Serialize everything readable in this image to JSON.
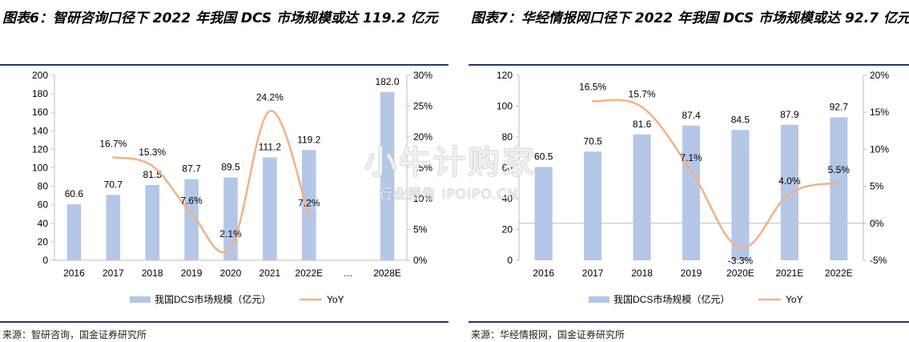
{
  "left": {
    "title": "图表6：智研咨询口径下 2022 年我国 DCS 市场规模或达 119.2 亿元",
    "source": "来源：智研咨询，国金证券研究所"
  },
  "right": {
    "title": "图表7：华经情报网口径下 2022 年我国 DCS 市场规模或达 92.7 亿元",
    "source": "来源：华经情报网，国金证券研究所"
  },
  "watermark": {
    "main": "小牛计购家",
    "sub": "行业报告 IPOIPO.CN"
  },
  "colors": {
    "bar": "#b4c7e7",
    "line": "#f4b183",
    "rule": "#1f3a68",
    "axis": "#bfbfbf"
  },
  "chart_data": [
    {
      "type": "bar",
      "categories": [
        "2016",
        "2017",
        "2018",
        "2019",
        "2020",
        "2021",
        "2022E",
        "…",
        "2028E"
      ],
      "series": [
        {
          "name": "我国DCS市场规模（亿元）",
          "type": "bar",
          "axis": "left",
          "values": [
            60.6,
            70.7,
            81.5,
            87.7,
            89.5,
            111.2,
            119.2,
            null,
            182.0
          ],
          "labels": [
            "60.6",
            "70.7",
            "81.5",
            "87.7",
            "89.5",
            "111.2",
            "119.2",
            "",
            "182.0"
          ]
        },
        {
          "name": "YoY",
          "type": "line",
          "axis": "right",
          "values": [
            null,
            16.7,
            15.3,
            7.6,
            2.1,
            24.2,
            7.2,
            null,
            null
          ],
          "labels": [
            "",
            "16.7%",
            "15.3%",
            "7.6%",
            "2.1%",
            "24.2%",
            "7.2%",
            "",
            ""
          ]
        }
      ],
      "ylim": [
        0,
        200
      ],
      "yticks": [
        "0",
        "20",
        "40",
        "60",
        "80",
        "100",
        "120",
        "140",
        "160",
        "180",
        "200"
      ],
      "y2lim": [
        0,
        30
      ],
      "y2ticks": [
        "0%",
        "5%",
        "10%",
        "15%",
        "20%",
        "25%",
        "30%"
      ],
      "legend": "bottom"
    },
    {
      "type": "bar",
      "categories": [
        "2016",
        "2017",
        "2018",
        "2019",
        "2020E",
        "2021E",
        "2022E"
      ],
      "series": [
        {
          "name": "我国DCS市场规模（亿元）",
          "type": "bar",
          "axis": "left",
          "values": [
            60.5,
            70.5,
            81.6,
            87.4,
            84.5,
            87.9,
            92.7
          ],
          "labels": [
            "60.5",
            "70.5",
            "81.6",
            "87.4",
            "84.5",
            "87.9",
            "92.7"
          ]
        },
        {
          "name": "YoY",
          "type": "line",
          "axis": "right",
          "values": [
            null,
            16.5,
            15.7,
            7.1,
            -3.3,
            4.0,
            5.5
          ],
          "labels": [
            "",
            "16.5%",
            "15.7%",
            "7.1%",
            "-3.3%",
            "4.0%",
            "5.5%"
          ]
        }
      ],
      "ylim": [
        0,
        120
      ],
      "yticks": [
        "0",
        "20",
        "40",
        "60",
        "80",
        "100",
        "120"
      ],
      "y2lim": [
        -5,
        20
      ],
      "y2ticks": [
        "-5%",
        "0%",
        "5%",
        "10%",
        "15%",
        "20%"
      ],
      "legend": "bottom"
    }
  ]
}
